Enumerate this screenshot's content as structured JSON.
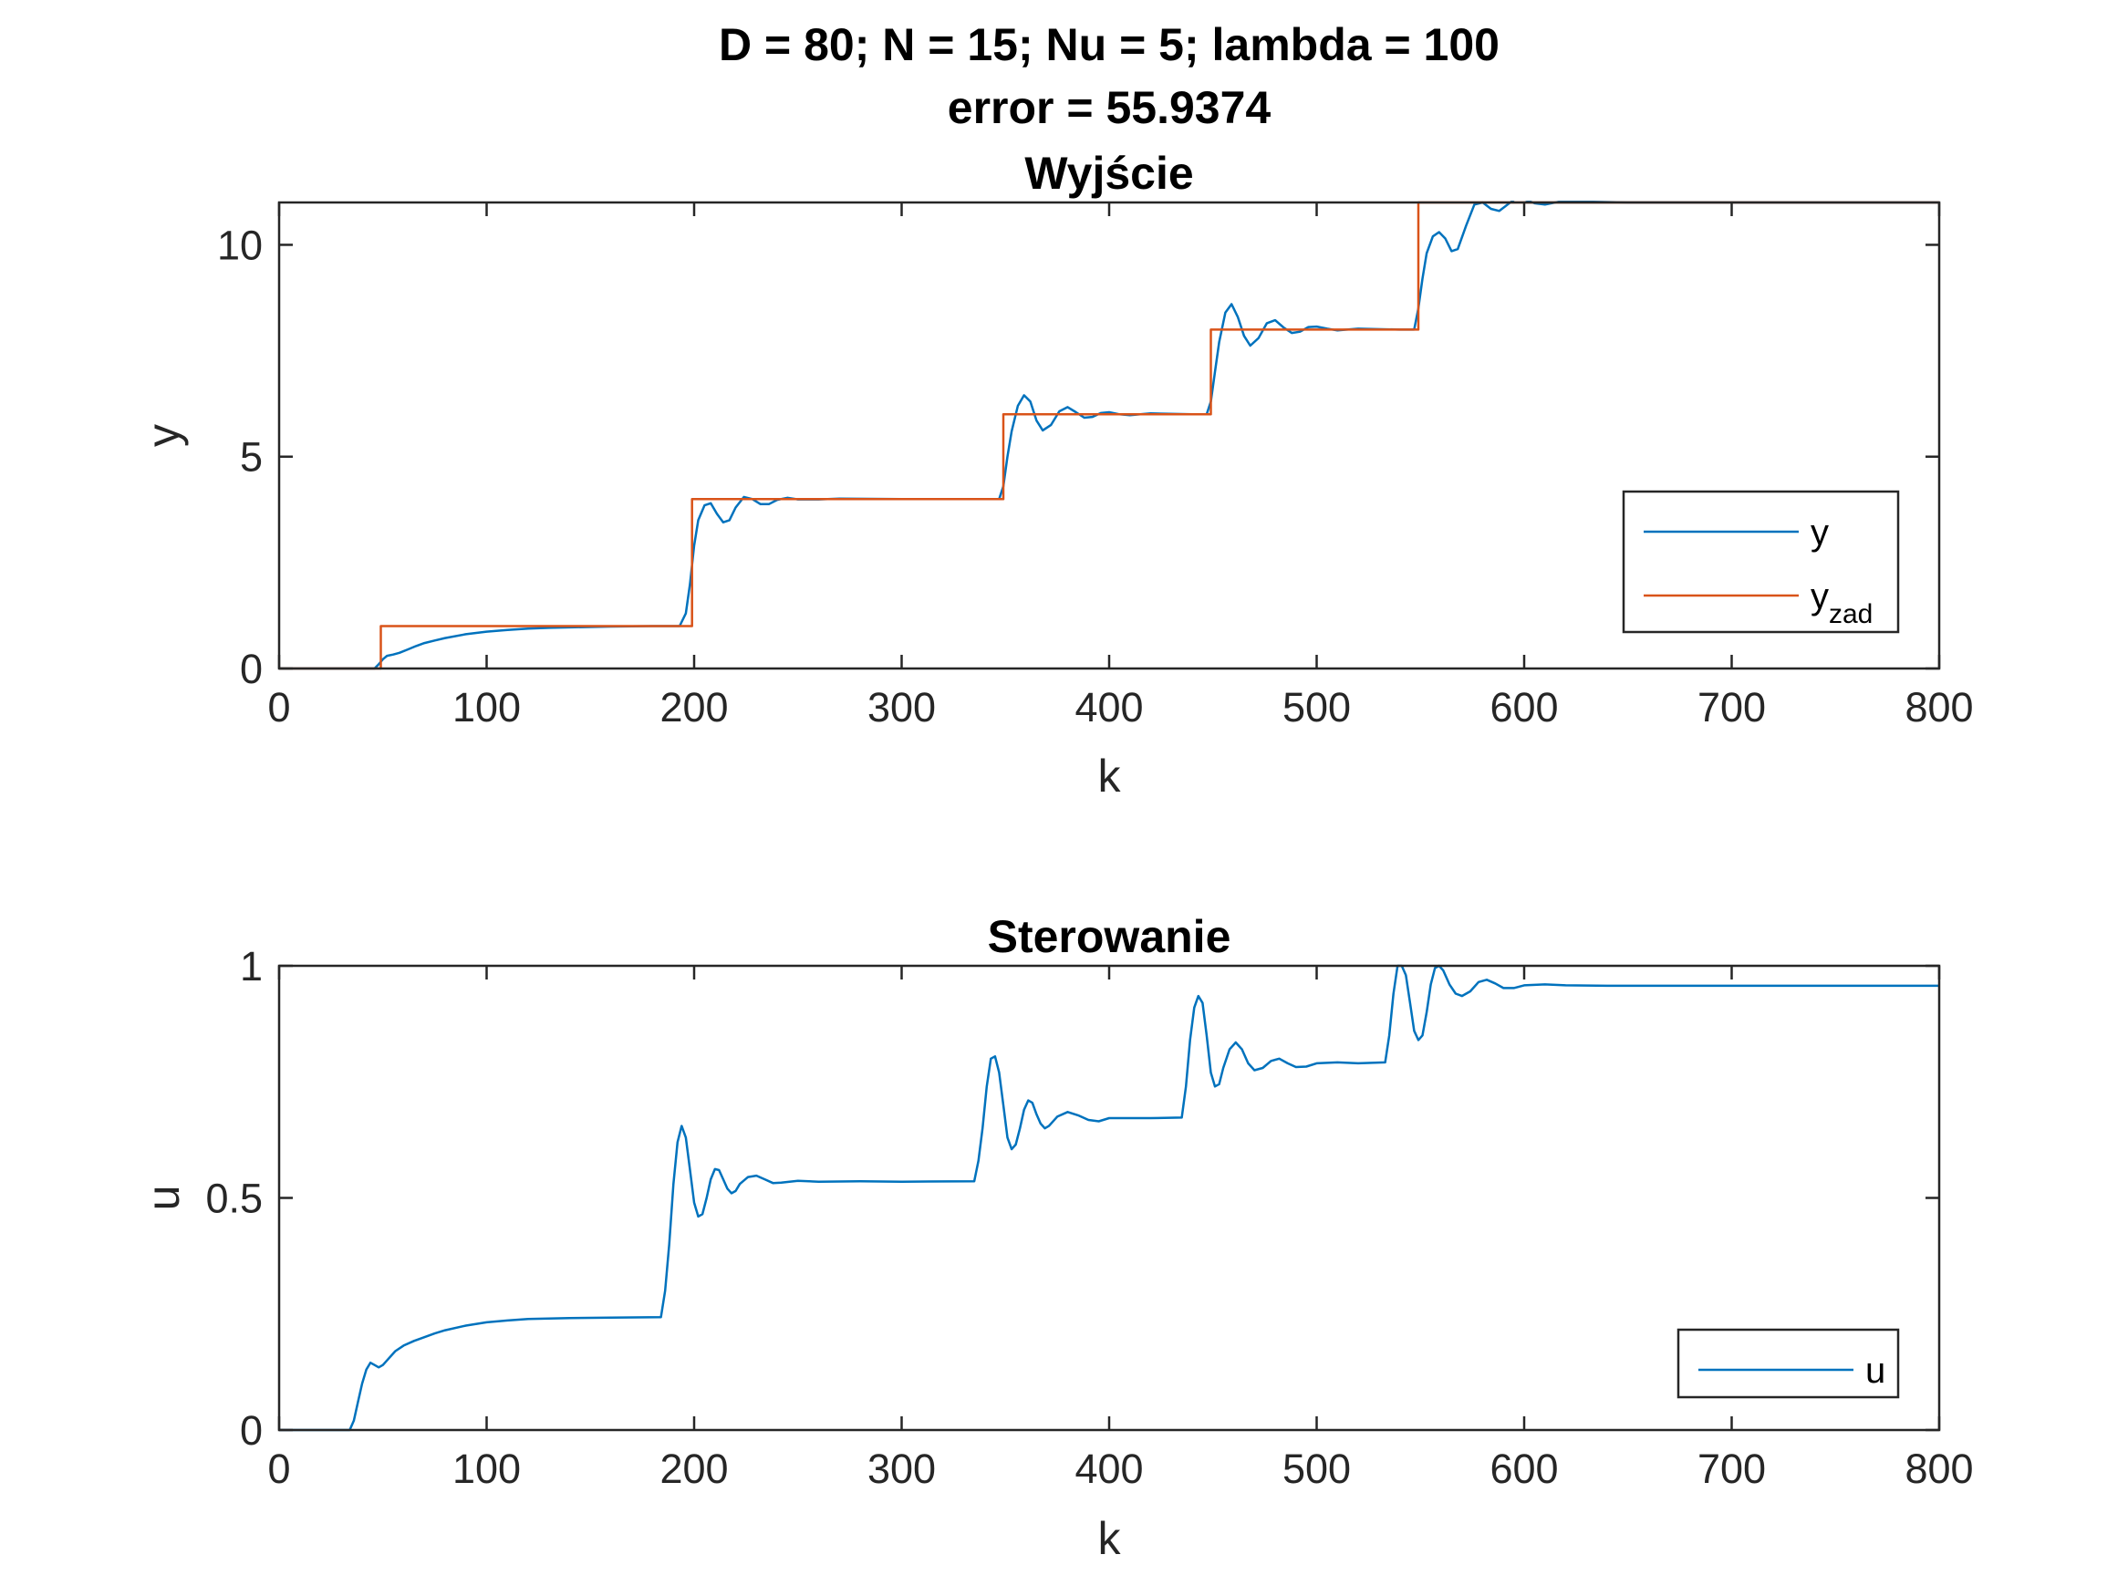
{
  "figure_title": {
    "line1": "D = 80; N = 15; Nu = 5; lambda = 100",
    "line2": "error = 55.9374"
  },
  "chart_data": [
    {
      "type": "line",
      "title": "Wyjście",
      "xlabel": "k",
      "ylabel": "y",
      "xlim": [
        0,
        800
      ],
      "ylim": [
        0,
        11
      ],
      "xticks": [
        "0",
        "100",
        "200",
        "300",
        "400",
        "500",
        "600",
        "700",
        "800"
      ],
      "yticks": [
        "0",
        "5",
        "10"
      ],
      "legend_position": "bottom-right",
      "series": [
        {
          "name": "y",
          "color": "#0072BD",
          "points": [
            [
              0,
              0
            ],
            [
              46,
              0
            ],
            [
              48,
              0.1
            ],
            [
              50,
              0.22
            ],
            [
              52,
              0.3
            ],
            [
              55,
              0.33
            ],
            [
              58,
              0.37
            ],
            [
              62,
              0.45
            ],
            [
              66,
              0.53
            ],
            [
              70,
              0.6
            ],
            [
              75,
              0.66
            ],
            [
              80,
              0.72
            ],
            [
              90,
              0.81
            ],
            [
              100,
              0.87
            ],
            [
              110,
              0.91
            ],
            [
              120,
              0.94
            ],
            [
              130,
              0.96
            ],
            [
              140,
              0.97
            ],
            [
              160,
              0.99
            ],
            [
              180,
              1.0
            ],
            [
              193,
              1.0
            ],
            [
              196,
              1.3
            ],
            [
              198,
              2.0
            ],
            [
              200,
              2.9
            ],
            [
              202,
              3.5
            ],
            [
              205,
              3.85
            ],
            [
              208,
              3.9
            ],
            [
              211,
              3.65
            ],
            [
              214,
              3.45
            ],
            [
              217,
              3.5
            ],
            [
              220,
              3.8
            ],
            [
              224,
              4.05
            ],
            [
              228,
              4.0
            ],
            [
              232,
              3.88
            ],
            [
              236,
              3.88
            ],
            [
              240,
              3.98
            ],
            [
              245,
              4.03
            ],
            [
              250,
              3.99
            ],
            [
              260,
              3.99
            ],
            [
              270,
              4.01
            ],
            [
              300,
              4.0
            ],
            [
              347,
              4.0
            ],
            [
              349,
              4.3
            ],
            [
              351,
              5.0
            ],
            [
              353,
              5.6
            ],
            [
              356,
              6.2
            ],
            [
              359,
              6.45
            ],
            [
              362,
              6.3
            ],
            [
              365,
              5.85
            ],
            [
              368,
              5.62
            ],
            [
              372,
              5.75
            ],
            [
              376,
              6.07
            ],
            [
              380,
              6.17
            ],
            [
              384,
              6.05
            ],
            [
              388,
              5.92
            ],
            [
              392,
              5.94
            ],
            [
              396,
              6.03
            ],
            [
              400,
              6.05
            ],
            [
              405,
              6.0
            ],
            [
              410,
              5.98
            ],
            [
              420,
              6.02
            ],
            [
              440,
              6.0
            ],
            [
              447,
              6.0
            ],
            [
              449,
              6.3
            ],
            [
              451,
              7.0
            ],
            [
              453,
              7.7
            ],
            [
              456,
              8.4
            ],
            [
              459,
              8.6
            ],
            [
              462,
              8.3
            ],
            [
              465,
              7.85
            ],
            [
              468,
              7.62
            ],
            [
              472,
              7.8
            ],
            [
              476,
              8.15
            ],
            [
              480,
              8.22
            ],
            [
              484,
              8.05
            ],
            [
              488,
              7.92
            ],
            [
              492,
              7.95
            ],
            [
              496,
              8.06
            ],
            [
              500,
              8.07
            ],
            [
              505,
              8.02
            ],
            [
              510,
              7.98
            ],
            [
              520,
              8.02
            ],
            [
              540,
              8.0
            ],
            [
              547,
              8.0
            ],
            [
              549,
              8.5
            ],
            [
              551,
              9.2
            ],
            [
              553,
              9.8
            ],
            [
              556,
              10.2
            ],
            [
              559,
              10.3
            ],
            [
              562,
              10.15
            ],
            [
              565,
              9.85
            ],
            [
              568,
              9.9
            ],
            [
              572,
              10.45
            ],
            [
              576,
              10.95
            ],
            [
              580,
              11.0
            ],
            [
              584,
              10.85
            ],
            [
              588,
              10.8
            ],
            [
              592,
              10.95
            ],
            [
              596,
              11.1
            ],
            [
              600,
              11.08
            ],
            [
              605,
              10.98
            ],
            [
              610,
              10.95
            ],
            [
              615,
              11.0
            ],
            [
              620,
              11.05
            ],
            [
              630,
              11.02
            ],
            [
              650,
              11.0
            ],
            [
              800,
              11.0
            ]
          ]
        },
        {
          "name": "yzad",
          "label_main": "y",
          "label_sub": "zad",
          "color": "#D95319",
          "points": [
            [
              0,
              0
            ],
            [
              49,
              0
            ],
            [
              49,
              1
            ],
            [
              199,
              1
            ],
            [
              199,
              4
            ],
            [
              349,
              4
            ],
            [
              349,
              6
            ],
            [
              449,
              6
            ],
            [
              449,
              8
            ],
            [
              549,
              8
            ],
            [
              549,
              11
            ],
            [
              800,
              11
            ]
          ]
        }
      ]
    },
    {
      "type": "line",
      "title": "Sterowanie",
      "xlabel": "k",
      "ylabel": "u",
      "xlim": [
        0,
        800
      ],
      "ylim": [
        0,
        1
      ],
      "xticks": [
        "0",
        "100",
        "200",
        "300",
        "400",
        "500",
        "600",
        "700",
        "800"
      ],
      "yticks": [
        "0",
        "0.5",
        "1"
      ],
      "legend_position": "bottom-right",
      "series": [
        {
          "name": "u",
          "color": "#0072BD",
          "points": [
            [
              0,
              0
            ],
            [
              34,
              0
            ],
            [
              36,
              0.02
            ],
            [
              38,
              0.06
            ],
            [
              40,
              0.1
            ],
            [
              42,
              0.13
            ],
            [
              44,
              0.145
            ],
            [
              46,
              0.14
            ],
            [
              48,
              0.135
            ],
            [
              50,
              0.14
            ],
            [
              53,
              0.155
            ],
            [
              56,
              0.17
            ],
            [
              60,
              0.182
            ],
            [
              65,
              0.192
            ],
            [
              70,
              0.2
            ],
            [
              75,
              0.208
            ],
            [
              80,
              0.215
            ],
            [
              90,
              0.225
            ],
            [
              100,
              0.232
            ],
            [
              110,
              0.236
            ],
            [
              120,
              0.239
            ],
            [
              140,
              0.241
            ],
            [
              160,
              0.242
            ],
            [
              184,
              0.243
            ],
            [
              186,
              0.3
            ],
            [
              188,
              0.4
            ],
            [
              190,
              0.53
            ],
            [
              192,
              0.62
            ],
            [
              194,
              0.655
            ],
            [
              196,
              0.63
            ],
            [
              198,
              0.56
            ],
            [
              200,
              0.49
            ],
            [
              202,
              0.46
            ],
            [
              204,
              0.465
            ],
            [
              206,
              0.5
            ],
            [
              208,
              0.54
            ],
            [
              210,
              0.562
            ],
            [
              212,
              0.56
            ],
            [
              214,
              0.54
            ],
            [
              216,
              0.52
            ],
            [
              218,
              0.51
            ],
            [
              220,
              0.515
            ],
            [
              222,
              0.53
            ],
            [
              226,
              0.545
            ],
            [
              230,
              0.548
            ],
            [
              234,
              0.54
            ],
            [
              238,
              0.532
            ],
            [
              242,
              0.533
            ],
            [
              250,
              0.537
            ],
            [
              260,
              0.535
            ],
            [
              280,
              0.536
            ],
            [
              300,
              0.535
            ],
            [
              335,
              0.536
            ],
            [
              337,
              0.58
            ],
            [
              339,
              0.65
            ],
            [
              341,
              0.74
            ],
            [
              343,
              0.8
            ],
            [
              345,
              0.805
            ],
            [
              347,
              0.77
            ],
            [
              349,
              0.7
            ],
            [
              351,
              0.63
            ],
            [
              353,
              0.605
            ],
            [
              355,
              0.615
            ],
            [
              357,
              0.65
            ],
            [
              359,
              0.69
            ],
            [
              361,
              0.71
            ],
            [
              363,
              0.705
            ],
            [
              365,
              0.68
            ],
            [
              367,
              0.66
            ],
            [
              369,
              0.65
            ],
            [
              371,
              0.655
            ],
            [
              375,
              0.675
            ],
            [
              380,
              0.685
            ],
            [
              385,
              0.678
            ],
            [
              390,
              0.668
            ],
            [
              395,
              0.665
            ],
            [
              400,
              0.672
            ],
            [
              410,
              0.672
            ],
            [
              420,
              0.672
            ],
            [
              435,
              0.673
            ],
            [
              437,
              0.74
            ],
            [
              439,
              0.84
            ],
            [
              441,
              0.91
            ],
            [
              443,
              0.935
            ],
            [
              445,
              0.92
            ],
            [
              447,
              0.85
            ],
            [
              449,
              0.77
            ],
            [
              451,
              0.74
            ],
            [
              453,
              0.745
            ],
            [
              455,
              0.78
            ],
            [
              458,
              0.82
            ],
            [
              461,
              0.835
            ],
            [
              464,
              0.82
            ],
            [
              467,
              0.79
            ],
            [
              470,
              0.775
            ],
            [
              474,
              0.78
            ],
            [
              478,
              0.795
            ],
            [
              482,
              0.8
            ],
            [
              486,
              0.79
            ],
            [
              490,
              0.782
            ],
            [
              495,
              0.783
            ],
            [
              500,
              0.79
            ],
            [
              510,
              0.792
            ],
            [
              520,
              0.79
            ],
            [
              533,
              0.792
            ],
            [
              535,
              0.85
            ],
            [
              537,
              0.94
            ],
            [
              539,
              1.0
            ],
            [
              541,
              1.0
            ],
            [
              543,
              0.98
            ],
            [
              545,
              0.92
            ],
            [
              547,
              0.86
            ],
            [
              549,
              0.84
            ],
            [
              551,
              0.85
            ],
            [
              553,
              0.9
            ],
            [
              555,
              0.96
            ],
            [
              557,
              0.995
            ],
            [
              559,
              1.0
            ],
            [
              561,
              0.99
            ],
            [
              564,
              0.96
            ],
            [
              567,
              0.94
            ],
            [
              570,
              0.935
            ],
            [
              574,
              0.945
            ],
            [
              578,
              0.965
            ],
            [
              582,
              0.97
            ],
            [
              586,
              0.962
            ],
            [
              590,
              0.952
            ],
            [
              595,
              0.952
            ],
            [
              600,
              0.958
            ],
            [
              610,
              0.96
            ],
            [
              620,
              0.958
            ],
            [
              640,
              0.957
            ],
            [
              700,
              0.957
            ],
            [
              800,
              0.957
            ]
          ]
        }
      ]
    }
  ]
}
